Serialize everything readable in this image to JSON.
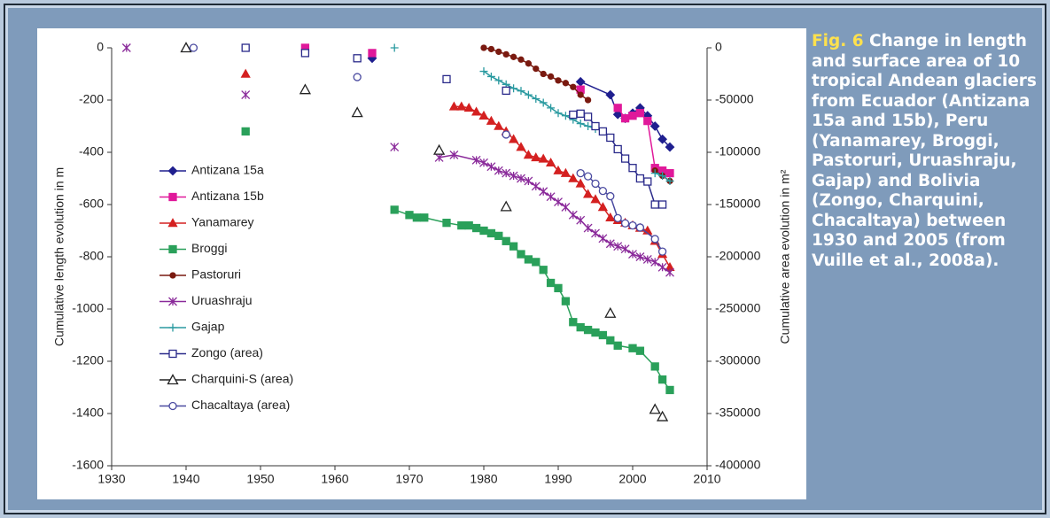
{
  "chart_data": {
    "type": "scatter",
    "xlabel": "",
    "ylabel": "Cumulative length evolution in m",
    "y2label": "Cumulative area evolution in m²",
    "xlim": [
      1930,
      2010
    ],
    "xticks": [
      1930,
      1940,
      1950,
      1960,
      1970,
      1980,
      1990,
      2000,
      2010
    ],
    "ylim": [
      -1600,
      0
    ],
    "yticks": [
      -1600,
      -1400,
      -1200,
      -1000,
      -800,
      -600,
      -400,
      -200,
      0
    ],
    "y2lim": [
      -400000,
      0
    ],
    "y2ticks": [
      -400000,
      -350000,
      -300000,
      -250000,
      -200000,
      -150000,
      -100000,
      -50000,
      0
    ],
    "series": [
      {
        "name": "Antizana 15a",
        "color": "#1f1f8f",
        "marker": "diamond",
        "line": true,
        "x": [
          1965,
          1993,
          1997,
          1998,
          1999,
          2000,
          2001,
          2002,
          2003,
          2004,
          2005
        ],
        "values": [
          -40,
          -130,
          -180,
          -255,
          -270,
          -250,
          -230,
          -260,
          -300,
          -350,
          -380
        ]
      },
      {
        "name": "Antizana 15b",
        "color": "#e0199a",
        "marker": "square",
        "line": true,
        "x": [
          1956,
          1965,
          1993,
          1998,
          1999,
          2000,
          2001,
          2002,
          2003,
          2004,
          2005
        ],
        "values": [
          0,
          -20,
          -160,
          -230,
          -270,
          -260,
          -250,
          -280,
          -460,
          -470,
          -480
        ]
      },
      {
        "name": "Yanamarey",
        "color": "#d42020",
        "marker": "triangle",
        "line": true,
        "x": [
          1948,
          1976,
          1977,
          1978,
          1979,
          1980,
          1981,
          1982,
          1983,
          1984,
          1985,
          1986,
          1987,
          1988,
          1989,
          1990,
          1991,
          1992,
          1993,
          1994,
          1995,
          1996,
          1997,
          1998,
          1999,
          2000,
          2001,
          2002,
          2003,
          2004,
          2005
        ],
        "values": [
          -100,
          -225,
          -225,
          -230,
          -245,
          -260,
          -280,
          -300,
          -320,
          -350,
          -380,
          -410,
          -420,
          -425,
          -440,
          -470,
          -480,
          -500,
          -520,
          -560,
          -580,
          -610,
          -650,
          -660,
          -670,
          -680,
          -690,
          -700,
          -740,
          -790,
          -840
        ]
      },
      {
        "name": "Broggi",
        "color": "#2aa05a",
        "marker": "square",
        "line": true,
        "x": [
          1948,
          1968,
          1970,
          1971,
          1972,
          1975,
          1977,
          1978,
          1979,
          1980,
          1981,
          1982,
          1983,
          1984,
          1985,
          1986,
          1987,
          1988,
          1989,
          1990,
          1991,
          1992,
          1993,
          1994,
          1995,
          1996,
          1997,
          1998,
          2000,
          2001,
          2003,
          2004,
          2005
        ],
        "values": [
          -320,
          -620,
          -640,
          -650,
          -650,
          -670,
          -680,
          -680,
          -690,
          -700,
          -710,
          -720,
          -740,
          -760,
          -790,
          -810,
          -820,
          -850,
          -900,
          -920,
          -970,
          -1050,
          -1070,
          -1080,
          -1090,
          -1100,
          -1120,
          -1140,
          -1150,
          -1160,
          -1220,
          -1270,
          -1310
        ]
      },
      {
        "name": "Pastoruri",
        "color": "#7a1a10",
        "marker": "circle",
        "line": true,
        "x": [
          1980,
          1981,
          1982,
          1983,
          1984,
          1985,
          1986,
          1987,
          1988,
          1989,
          1990,
          1991,
          1992,
          1993,
          1994,
          2003,
          2004,
          2005
        ],
        "values": [
          0,
          -5,
          -15,
          -25,
          -35,
          -45,
          -60,
          -80,
          -100,
          -110,
          -125,
          -135,
          -150,
          -180,
          -200,
          -470,
          -490,
          -510
        ]
      },
      {
        "name": "Uruashraju",
        "color": "#8a2a9a",
        "marker": "asterisk",
        "line": true,
        "x": [
          1932,
          1948,
          1968,
          1974,
          1976,
          1979,
          1980,
          1981,
          1982,
          1983,
          1984,
          1985,
          1986,
          1987,
          1988,
          1989,
          1990,
          1991,
          1992,
          1993,
          1994,
          1995,
          1996,
          1997,
          1998,
          1999,
          2000,
          2001,
          2002,
          2003,
          2004,
          2005
        ],
        "values": [
          0,
          -180,
          -380,
          -420,
          -410,
          -430,
          -440,
          -455,
          -470,
          -480,
          -490,
          -500,
          -510,
          -530,
          -550,
          -570,
          -590,
          -610,
          -640,
          -660,
          -690,
          -710,
          -730,
          -750,
          -760,
          -770,
          -790,
          -800,
          -810,
          -820,
          -840,
          -860
        ]
      },
      {
        "name": "Gajap",
        "color": "#2a9aa0",
        "marker": "plus",
        "line": true,
        "x": [
          1968,
          1980,
          1981,
          1982,
          1983,
          1984,
          1985,
          1986,
          1987,
          1988,
          1989,
          1990,
          1991,
          1992,
          1993,
          1994,
          1995,
          2003,
          2004,
          2005
        ],
        "values": [
          0,
          -90,
          -110,
          -125,
          -140,
          -155,
          -165,
          -180,
          -195,
          -210,
          -230,
          -250,
          -260,
          -275,
          -290,
          -300,
          -310,
          -480,
          -490,
          -510
        ]
      },
      {
        "name": "Zongo (area)",
        "color": "#2a2a8a",
        "marker": "open-square",
        "line": true,
        "axis": "y2",
        "x": [
          1948,
          1956,
          1963,
          1975,
          1983,
          1992,
          1993,
          1994,
          1995,
          1996,
          1997,
          1998,
          1999,
          2000,
          2001,
          2002,
          2003,
          2004
        ],
        "values": [
          0,
          -5000,
          -10000,
          -30000,
          -41000,
          -64000,
          -63000,
          -66000,
          -75000,
          -80000,
          -86000,
          -97000,
          -106000,
          -115000,
          -125000,
          -128000,
          -150000,
          -150000
        ]
      },
      {
        "name": "Charquini-S (area)",
        "color": "#222222",
        "marker": "open-triangle",
        "line": false,
        "axis": "y2",
        "x": [
          1940,
          1956,
          1963,
          1974,
          1983,
          1997,
          2003,
          2004
        ],
        "values": [
          0,
          -40000,
          -62000,
          -98000,
          -152000,
          -254000,
          -346000,
          -353000
        ]
      },
      {
        "name": "Chacaltaya (area)",
        "color": "#4a4aa0",
        "marker": "open-circle",
        "line": true,
        "axis": "y2",
        "x": [
          1941,
          1963,
          1983,
          1993,
          1994,
          1995,
          1996,
          1997,
          1998,
          1999,
          2000,
          2001,
          2003,
          2004
        ],
        "values": [
          0,
          -28000,
          -83000,
          -120000,
          -123000,
          -130000,
          -137000,
          -142000,
          -163000,
          -168000,
          -170000,
          -172000,
          -183000,
          -195000
        ]
      }
    ]
  },
  "caption": {
    "label": "Fig. 6",
    "text": "Change in length and surface area of 10 tropical Andean glaciers from Ecuador (Antizana 15a and 15b), Peru (Yanamarey, Broggi, Pastoruri, Uruashraju, Gajap) and Bolivia (Zongo, Charquini, Chacaltaya) between 1930 and 2005 (from Vuille et al., 2008a)."
  }
}
